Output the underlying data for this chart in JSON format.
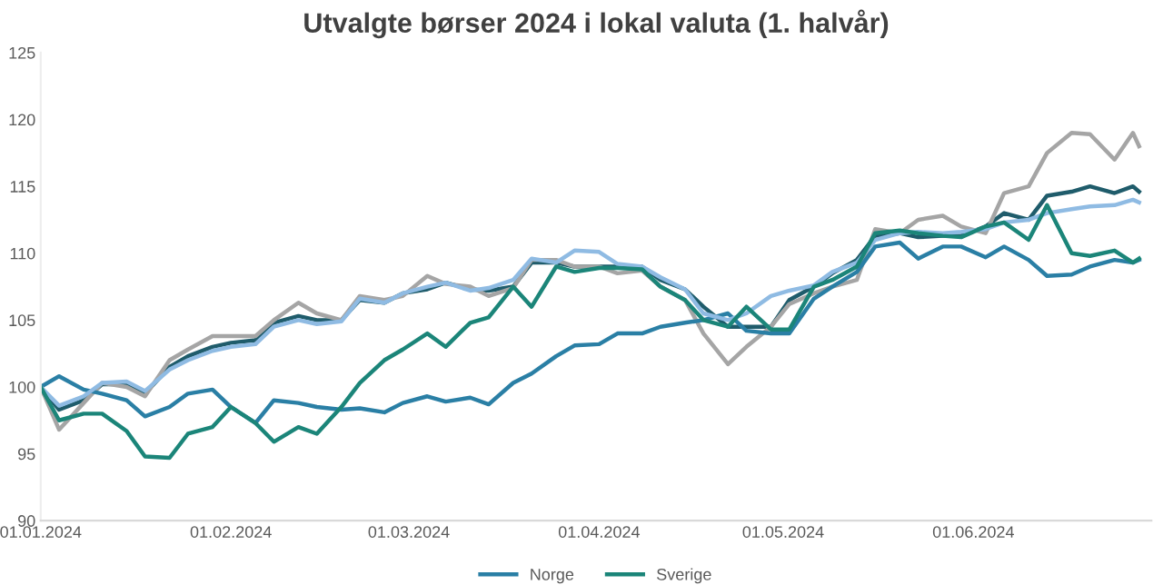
{
  "chart_data": {
    "type": "line",
    "title": "Utvalgte børser 2024 i lokal valuta (1. halvår)",
    "x": [
      "2024-01-01",
      "2024-01-04",
      "2024-01-08",
      "2024-01-11",
      "2024-01-15",
      "2024-01-18",
      "2024-01-22",
      "2024-01-25",
      "2024-01-29",
      "2024-02-01",
      "2024-02-05",
      "2024-02-08",
      "2024-02-12",
      "2024-02-15",
      "2024-02-19",
      "2024-02-22",
      "2024-02-26",
      "2024-02-29",
      "2024-03-04",
      "2024-03-07",
      "2024-03-11",
      "2024-03-14",
      "2024-03-18",
      "2024-03-21",
      "2024-03-25",
      "2024-03-28",
      "2024-04-01",
      "2024-04-04",
      "2024-04-08",
      "2024-04-11",
      "2024-04-15",
      "2024-04-18",
      "2024-04-22",
      "2024-04-25",
      "2024-04-29",
      "2024-05-02",
      "2024-05-06",
      "2024-05-09",
      "2024-05-13",
      "2024-05-16",
      "2024-05-20",
      "2024-05-23",
      "2024-05-27",
      "2024-05-30",
      "2024-06-03",
      "2024-06-06",
      "2024-06-10",
      "2024-06-13",
      "2024-06-17",
      "2024-06-20",
      "2024-06-24",
      "2024-06-27",
      "2024-06-28"
    ],
    "series": [
      {
        "color": "#1f5c6b",
        "values": [
          100,
          98.3,
          99,
          100.2,
          100.2,
          99.5,
          101.5,
          102.3,
          103,
          103.3,
          103.5,
          104.8,
          105.3,
          105,
          105,
          106.5,
          106.3,
          107,
          107.3,
          107.8,
          107.3,
          107.2,
          107.5,
          109.3,
          109.3,
          109,
          109,
          109,
          109,
          108,
          107.3,
          106,
          104.5,
          104.5,
          104.5,
          106.5,
          107.5,
          108.5,
          109.5,
          111.3,
          111.5,
          111.2,
          111.3,
          111.3,
          112,
          113,
          112.5,
          114.3,
          114.6,
          115,
          114.5,
          115,
          114.6
        ]
      },
      {
        "color": "#a5a5a5",
        "values": [
          100,
          96.8,
          98.8,
          100.3,
          100,
          99.3,
          102,
          102.8,
          103.8,
          103.8,
          103.8,
          105,
          106.3,
          105.5,
          105,
          106.8,
          106.5,
          106.8,
          108.3,
          107.7,
          107.5,
          106.8,
          107.4,
          109.5,
          109.5,
          109,
          109,
          108.5,
          108.7,
          107.5,
          106.5,
          104,
          101.7,
          103,
          104.5,
          106.2,
          107,
          107.5,
          108,
          111.8,
          111.5,
          112.5,
          112.8,
          112,
          111.5,
          114.5,
          115,
          117.5,
          119,
          118.9,
          117,
          119,
          118
        ]
      },
      {
        "name": "Norge",
        "color": "#2a7fa5",
        "values": [
          100,
          100.8,
          99.8,
          99.5,
          99,
          97.8,
          98.5,
          99.5,
          99.8,
          98.5,
          97.3,
          99,
          98.8,
          98.5,
          98.3,
          98.4,
          98.1,
          98.8,
          99.3,
          98.9,
          99.2,
          98.7,
          100.3,
          101,
          102.3,
          103.1,
          103.2,
          104,
          104,
          104.5,
          104.8,
          105,
          105.5,
          104.2,
          104,
          104,
          106.6,
          107.5,
          108.6,
          110.5,
          110.8,
          109.6,
          110.5,
          110.5,
          109.7,
          110.5,
          109.5,
          108.3,
          108.4,
          109,
          109.5,
          109.3,
          109.5
        ]
      },
      {
        "color": "#8fbbe3",
        "values": [
          100,
          98.6,
          99.3,
          100.3,
          100.4,
          99.7,
          101.3,
          102,
          102.7,
          103,
          103.2,
          104.5,
          105,
          104.7,
          104.9,
          106.6,
          106.3,
          107,
          107.5,
          107.8,
          107.2,
          107.4,
          108,
          109.6,
          109.3,
          110.2,
          110.1,
          109.2,
          109,
          108.2,
          107.3,
          105.5,
          105,
          105.5,
          106.8,
          107.2,
          107.6,
          108.6,
          109.3,
          111,
          111.5,
          111.6,
          111.5,
          111.6,
          111.8,
          112.3,
          112.5,
          113,
          113.3,
          113.5,
          113.6,
          114,
          113.8
        ]
      },
      {
        "name": "Sverige",
        "color": "#1b8579",
        "values": [
          100,
          97.5,
          98,
          98,
          96.7,
          94.8,
          94.7,
          96.5,
          97,
          98.5,
          97.3,
          95.9,
          97,
          96.5,
          98.5,
          100.3,
          102,
          102.8,
          104,
          103,
          104.8,
          105.2,
          107.5,
          106,
          109,
          108.6,
          108.9,
          108.9,
          108.8,
          107.5,
          106.5,
          105,
          104.5,
          106,
          104.3,
          104.3,
          107.5,
          108,
          109,
          111.5,
          111.7,
          111.5,
          111.3,
          111.2,
          112,
          112.3,
          111,
          113.6,
          110,
          109.8,
          110.2,
          109.3,
          109.6
        ]
      }
    ],
    "xlim": [
      "2024-01-01",
      "2024-06-30"
    ],
    "xticks": [
      {
        "value": "2024-01-01",
        "label": "01.01.2024"
      },
      {
        "value": "2024-02-01",
        "label": "01.02.2024"
      },
      {
        "value": "2024-03-01",
        "label": "01.03.2024"
      },
      {
        "value": "2024-04-01",
        "label": "01.04.2024"
      },
      {
        "value": "2024-05-01",
        "label": "01.05.2024"
      },
      {
        "value": "2024-06-01",
        "label": "01.06.2024"
      }
    ],
    "ylim": [
      90,
      125
    ],
    "yticks": [
      90,
      95,
      100,
      105,
      110,
      115,
      120,
      125
    ],
    "grid": false,
    "legend": "bottom",
    "marker": "none",
    "line_style": "solid"
  }
}
